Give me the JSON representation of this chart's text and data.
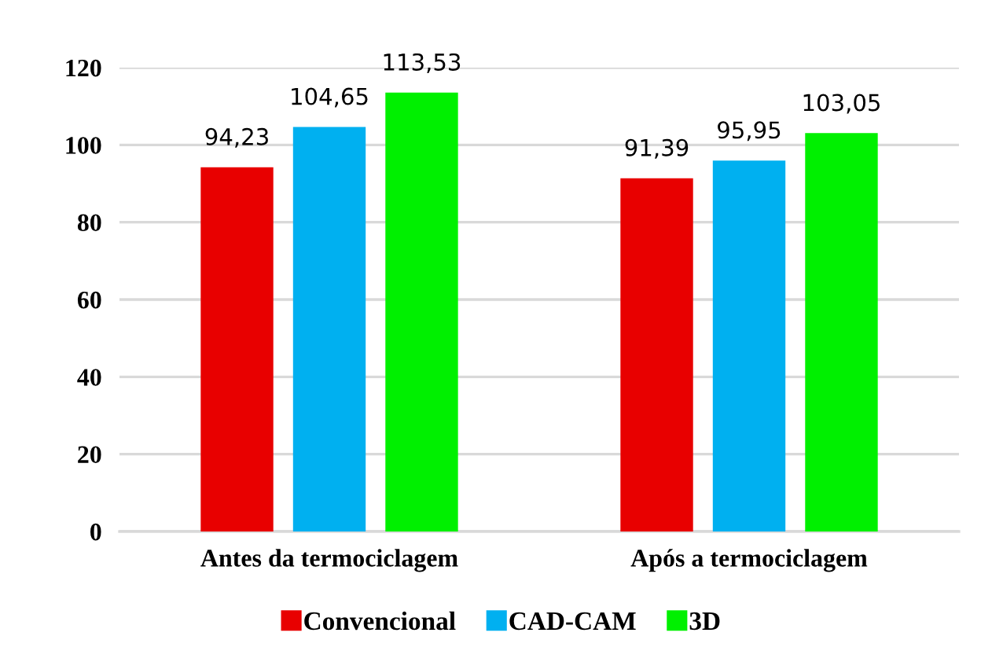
{
  "chart_data": {
    "type": "bar",
    "categories": [
      "Antes da termociclagem",
      "Após a termociclagem"
    ],
    "series": [
      {
        "name": "Convencional",
        "color": "#e80000",
        "values": [
          94.23,
          91.39
        ],
        "value_labels": [
          "94,23",
          "91,39"
        ]
      },
      {
        "name": "CAD-CAM",
        "color": "#00b0f0",
        "values": [
          104.65,
          95.95
        ],
        "value_labels": [
          "104,65",
          "95,95"
        ]
      },
      {
        "name": "3D",
        "color": "#00f000",
        "values": [
          113.53,
          103.05
        ],
        "value_labels": [
          "113,53",
          "103,05"
        ]
      }
    ],
    "ylim": [
      0,
      120
    ],
    "yticks": [
      0,
      20,
      40,
      60,
      80,
      100,
      120
    ],
    "grid": "y",
    "legend": "bottom"
  }
}
